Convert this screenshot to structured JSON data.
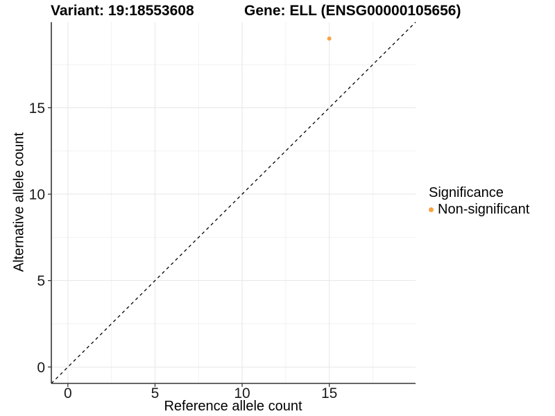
{
  "titles": {
    "left": "Variant: 19:18553608",
    "right": "Gene: ELL (ENSG00000105656)"
  },
  "colors": {
    "point": "#F9A242",
    "grid_major": "#E6E6E6",
    "grid_minor": "#F2F2F2",
    "axis_line": "#333333",
    "tick_label": "#1A1A1A",
    "reference_line": "#000000"
  },
  "chart_data": {
    "type": "scatter",
    "title_left": "Variant: 19:18553608",
    "title_right": "Gene: ELL (ENSG00000105656)",
    "xlabel": "Reference allele count",
    "ylabel": "Alternative allele count",
    "xlim": [
      -0.95,
      19.95
    ],
    "ylim": [
      -0.95,
      19.95
    ],
    "x_ticks": [
      0,
      5,
      10,
      15
    ],
    "y_ticks": [
      0,
      5,
      10,
      15
    ],
    "x_minor_ticks": [
      2.5,
      7.5,
      12.5,
      17.5
    ],
    "y_minor_ticks": [
      2.5,
      7.5,
      12.5,
      17.5
    ],
    "grid": "major+minor",
    "series": [
      {
        "name": "Non-significant",
        "color": "#F9A242",
        "points": [
          {
            "x": 15,
            "y": 19
          }
        ]
      }
    ],
    "reference_line": {
      "kind": "identity (y = x)",
      "style": "dashed",
      "color": "#000000",
      "from": [
        -0.95,
        -0.95
      ],
      "to": [
        19.95,
        19.95
      ]
    },
    "legend": {
      "title": "Significance",
      "position": "right",
      "entries": [
        {
          "label": "Non-significant",
          "color": "#F9A242"
        }
      ]
    }
  }
}
